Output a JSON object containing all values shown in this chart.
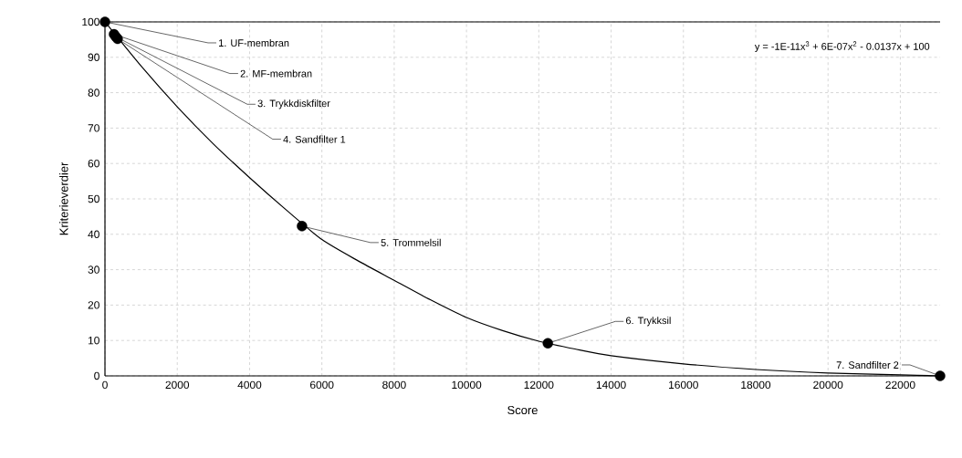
{
  "chart_data": {
    "type": "scatter",
    "xlabel": "Score",
    "ylabel": "Kriterieverdier",
    "xlim": [
      0,
      23100
    ],
    "xticks": [
      0,
      2000,
      4000,
      6000,
      8000,
      10000,
      12000,
      14000,
      16000,
      18000,
      20000,
      22000
    ],
    "ylim": [
      0,
      100
    ],
    "yticks": [
      0,
      10,
      20,
      30,
      40,
      50,
      60,
      70,
      80,
      90,
      100
    ],
    "grid": true,
    "series": [
      {
        "type": "line",
        "color": "#000000",
        "marker": "none",
        "x": [
          0,
          1000,
          2000,
          3000,
          4000,
          5000,
          6000,
          7000,
          8000,
          9000,
          10000,
          11000,
          12000,
          13000,
          14000,
          16000,
          18000,
          20000,
          22000,
          23100
        ],
        "values": [
          100,
          87.5,
          76,
          65.5,
          56,
          47,
          38.5,
          32.5,
          27,
          21.5,
          16.5,
          12.8,
          9.8,
          7.6,
          5.7,
          3.4,
          1.8,
          0.8,
          0.3,
          0
        ]
      },
      {
        "color": "#000000",
        "marker": "circle",
        "x": [
          0,
          250,
          300,
          350,
          5450,
          12250,
          23100
        ],
        "values": [
          100,
          96.5,
          95.8,
          95.2,
          42.3,
          9.2,
          0
        ]
      }
    ],
    "annotations": [
      {
        "text": "1. UF-membran",
        "x": 0,
        "y": 100
      },
      {
        "text": "2. MF-membran",
        "x": 250,
        "y": 96.5
      },
      {
        "text": "3. Trykkdiskfilter",
        "x": 300,
        "y": 95.8
      },
      {
        "text": "4. Sandfilter 1",
        "x": 350,
        "y": 95.2
      },
      {
        "text": "5. Trommelsil",
        "x": 5450,
        "y": 42.3
      },
      {
        "text": "6. Trykksil",
        "x": 12250,
        "y": 9.2
      },
      {
        "text": "7. Sandfilter 2",
        "x": 23100,
        "y": 0
      },
      "y = -1E-11x$^{3}$ + 6E-07x$^{2}$ - 0.0137x + 100"
    ]
  }
}
